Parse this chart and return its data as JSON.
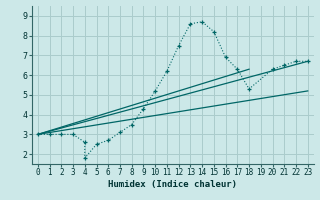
{
  "xlabel": "Humidex (Indice chaleur)",
  "bg_color": "#cce8e8",
  "grid_color": "#aacccc",
  "line_color": "#006666",
  "xlim": [
    -0.5,
    23.5
  ],
  "ylim": [
    1.5,
    9.5
  ],
  "xticks": [
    0,
    1,
    2,
    3,
    4,
    5,
    6,
    7,
    8,
    9,
    10,
    11,
    12,
    13,
    14,
    15,
    16,
    17,
    18,
    19,
    20,
    21,
    22,
    23
  ],
  "yticks": [
    2,
    3,
    4,
    5,
    6,
    7,
    8,
    9
  ],
  "main_x": [
    0,
    1,
    2,
    3,
    4,
    4,
    5,
    6,
    7,
    8,
    9,
    10,
    11,
    12,
    13,
    14,
    15,
    16,
    17,
    18,
    20,
    21,
    22,
    23
  ],
  "main_y": [
    3.0,
    3.0,
    3.0,
    3.0,
    2.6,
    1.8,
    2.5,
    2.7,
    3.1,
    3.5,
    4.3,
    5.2,
    6.2,
    7.5,
    8.6,
    8.7,
    8.2,
    6.9,
    6.3,
    5.3,
    6.3,
    6.5,
    6.7,
    6.7
  ],
  "line2_x": [
    0,
    23
  ],
  "line2_y": [
    3.0,
    6.7
  ],
  "line3_x": [
    0,
    18
  ],
  "line3_y": [
    3.0,
    6.3
  ],
  "line4_x": [
    0,
    23
  ],
  "line4_y": [
    3.0,
    5.2
  ]
}
